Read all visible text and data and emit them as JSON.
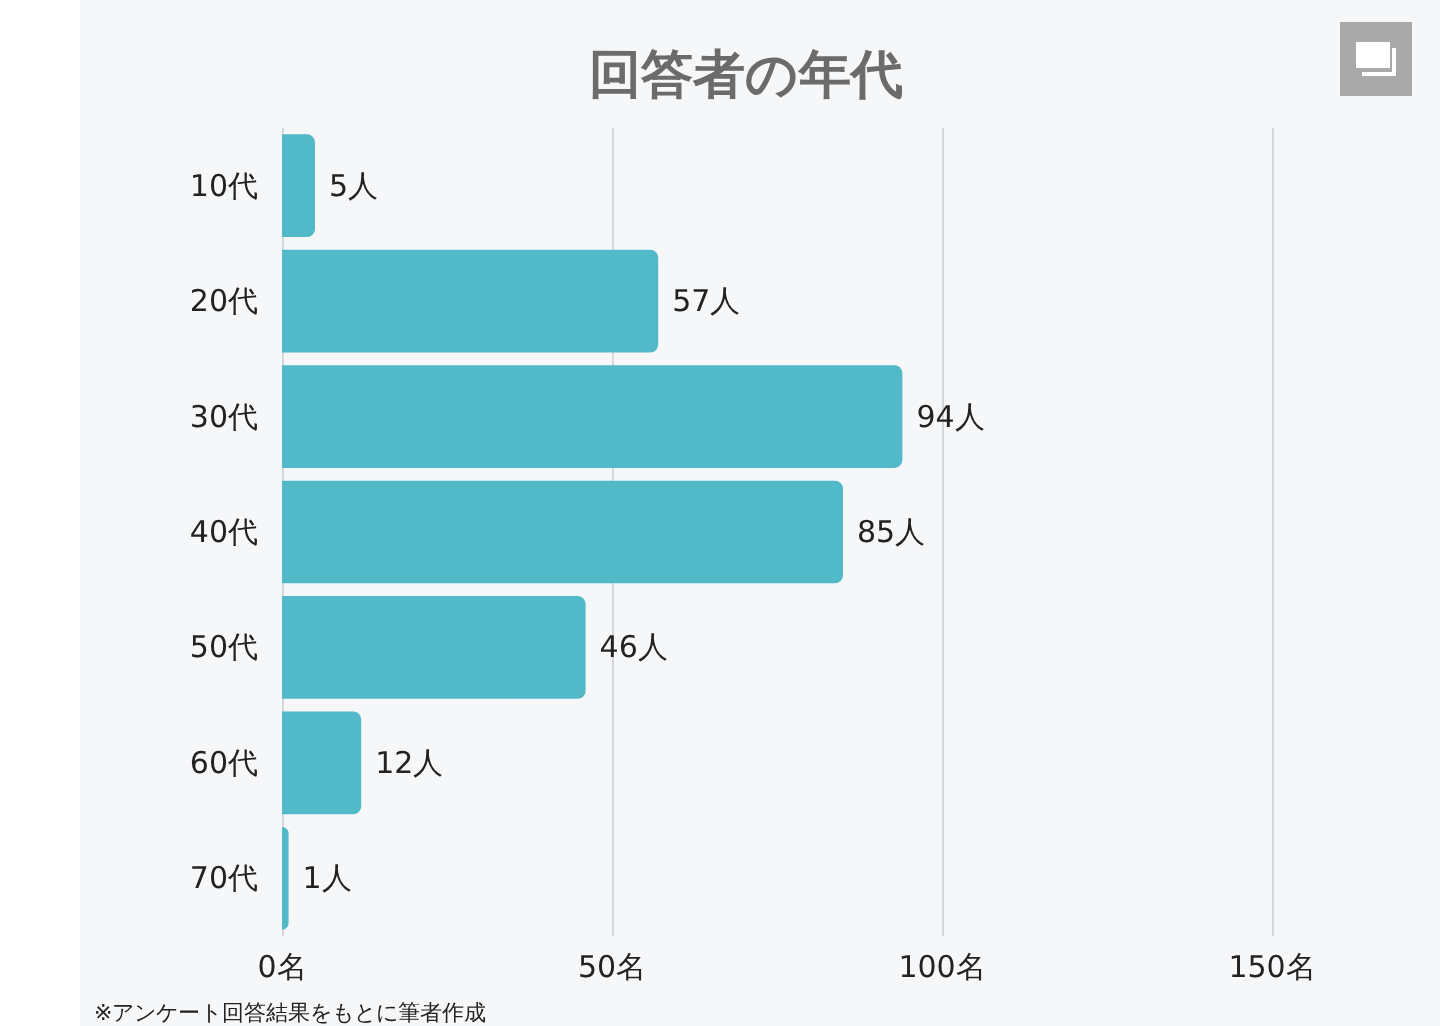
{
  "chart_data": {
    "type": "bar",
    "orientation": "horizontal",
    "title": "回答者の年代",
    "categories": [
      "10代",
      "20代",
      "30代",
      "40代",
      "50代",
      "60代",
      "70代"
    ],
    "values": [
      5,
      57,
      94,
      85,
      46,
      12,
      1
    ],
    "color": "#52b9c9",
    "value_labels": [
      "5人",
      "57人",
      "94人",
      "85人",
      "46人",
      "12人",
      "1人"
    ],
    "xlim": [
      0,
      150
    ],
    "xticks": [
      {
        "value": 0,
        "label": "0名"
      },
      {
        "value": 50,
        "label": "50名"
      },
      {
        "value": 100,
        "label": "100名"
      },
      {
        "value": 150,
        "label": "150名"
      }
    ],
    "grid": "x",
    "annotations": [
      "※アンケート回答結果をもとに筆者作成"
    ]
  }
}
